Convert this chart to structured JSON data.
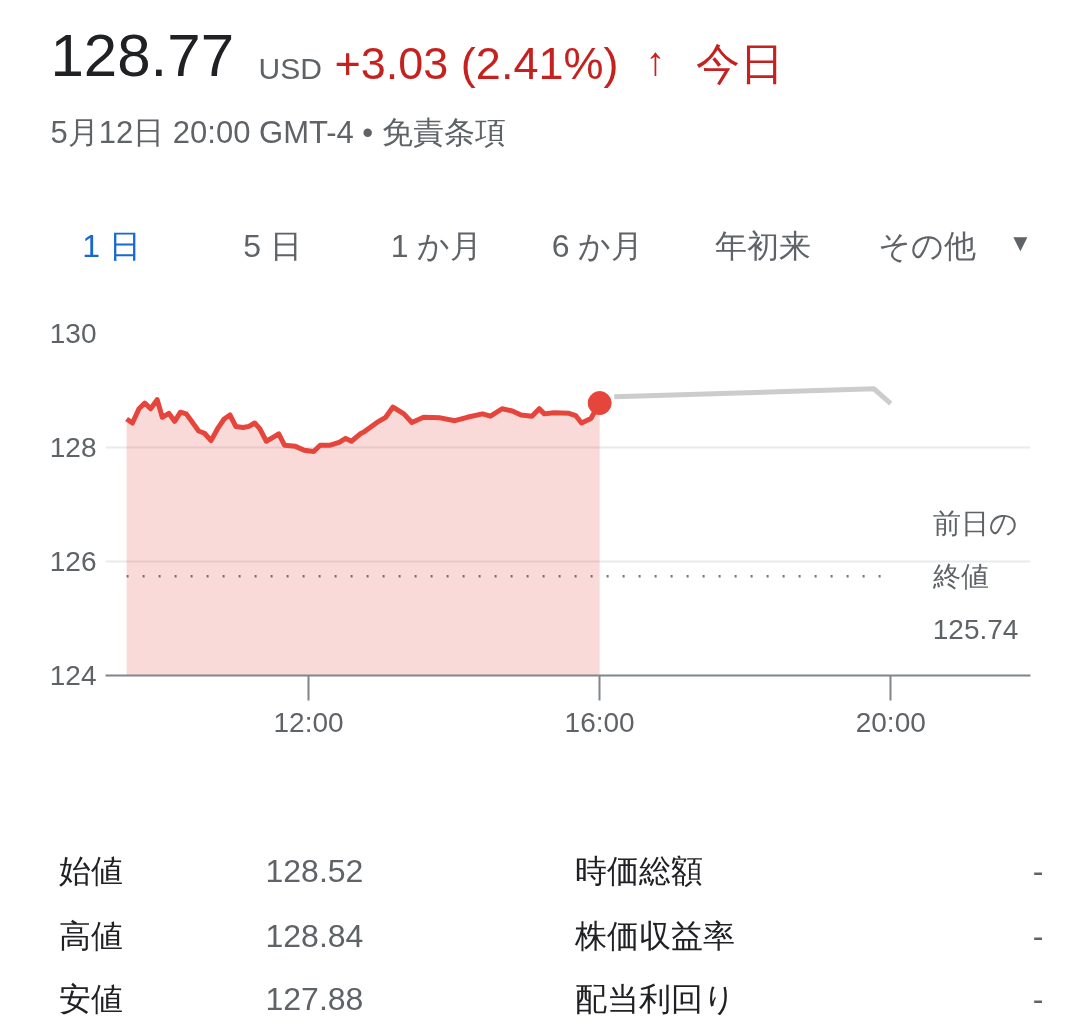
{
  "chart_data": {
    "type": "area",
    "title": "128.77",
    "subtitle": "5月12日 20:00 GMT-4 • 免責条項",
    "annotations": [
      "USD",
      "+3.03 (2.41%)",
      "↑",
      "今日",
      "1 日",
      "5 日",
      "1 か月",
      "6 か月",
      "年初来",
      "その他",
      "▼",
      "始値",
      "128.52",
      "時価総額",
      "-",
      "高値",
      "128.84",
      "株価収益率",
      "-",
      "安値",
      "127.88",
      "配当利回り",
      "-"
    ],
    "xlim": [
      9.21,
      21.92
    ],
    "xticks": [
      {
        "value": 12,
        "label": "12:00"
      },
      {
        "value": 16,
        "label": "16:00"
      },
      {
        "value": 20,
        "label": "20:00"
      }
    ],
    "ylim": [
      124,
      130
    ],
    "yticks": [
      124,
      126,
      128,
      130
    ],
    "grid": "y",
    "series": [
      {
        "color": "#e5453b",
        "x": [
          9.5,
          9.58,
          9.67,
          9.75,
          9.83,
          9.92,
          9.99,
          10.08,
          10.16,
          10.24,
          10.32,
          10.49,
          10.57,
          10.66,
          10.75,
          10.84,
          10.92,
          11.0,
          11.1,
          11.18,
          11.26,
          11.33,
          11.42,
          11.5,
          11.59,
          11.67,
          11.82,
          11.94,
          12.07,
          12.16,
          12.3,
          12.42,
          12.51,
          12.59,
          12.71,
          12.76,
          12.94,
          13.06,
          13.16,
          13.31,
          13.42,
          13.58,
          13.81,
          14.01,
          14.18,
          14.39,
          14.5,
          14.66,
          14.8,
          14.92,
          15.07,
          15.17,
          15.24,
          15.37,
          15.58,
          15.67,
          15.75,
          15.88,
          16.0
        ],
        "values": [
          128.5,
          128.43,
          128.68,
          128.78,
          128.68,
          128.84,
          128.53,
          128.6,
          128.46,
          128.62,
          128.59,
          128.29,
          128.25,
          128.12,
          128.33,
          128.5,
          128.57,
          128.37,
          128.35,
          128.37,
          128.43,
          128.33,
          128.11,
          128.17,
          128.24,
          128.04,
          128.02,
          127.95,
          127.93,
          128.04,
          128.04,
          128.09,
          128.16,
          128.11,
          128.24,
          128.27,
          128.44,
          128.53,
          128.71,
          128.59,
          128.44,
          128.53,
          128.52,
          128.47,
          128.53,
          128.59,
          128.55,
          128.68,
          128.64,
          128.57,
          128.55,
          128.68,
          128.59,
          128.61,
          128.6,
          128.56,
          128.43,
          128.51,
          128.78
        ]
      },
      {
        "type": "line",
        "color": "#cccccc",
        "x": [
          16.2,
          19.77,
          20.0
        ],
        "values": [
          128.89,
          129.03,
          128.77
        ]
      },
      {
        "type": "scatter",
        "marker": "circle",
        "color": "#e5453b",
        "x": [
          16.0
        ],
        "values": [
          128.78
        ]
      }
    ],
    "ref_lines": [
      {
        "axis": "y",
        "value": 125.74,
        "label": "前日の終値 125.74",
        "color": "#6f7378",
        "line_style": "dotted"
      }
    ]
  }
}
